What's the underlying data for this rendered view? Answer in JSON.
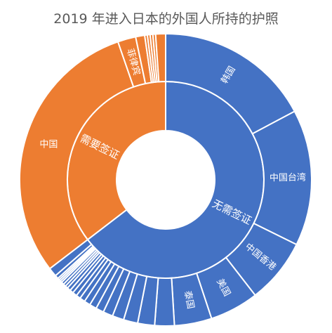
{
  "chart_data": {
    "type": "sunburst",
    "title": "2019 年进入日本的外国人所持的护照",
    "colors": {
      "visa_free": "#4472C4",
      "visa_required": "#ED7D31"
    },
    "inner": [
      {
        "name": "无需签证",
        "value": 64.6,
        "color_key": "visa_free"
      },
      {
        "name": "需要签证",
        "value": 35.4,
        "color_key": "visa_required"
      }
    ],
    "outer": [
      {
        "parent": "无需签证",
        "name": "韩国",
        "value": 17.5,
        "label": "韩国"
      },
      {
        "parent": "无需签证",
        "name": "中国台湾",
        "value": 15.3,
        "label": "中国台湾"
      },
      {
        "parent": "无需签证",
        "name": "中国香港",
        "value": 7.3,
        "label": "中国香港"
      },
      {
        "parent": "无需签证",
        "name": "美国",
        "value": 5.5,
        "label": "美国"
      },
      {
        "parent": "无需签证",
        "name": "泰国",
        "value": 4.2,
        "label": "泰国"
      },
      {
        "parent": "无需签证",
        "name": "",
        "value": 2.2,
        "label": ""
      },
      {
        "parent": "无需签证",
        "name": "",
        "value": 1.9,
        "label": ""
      },
      {
        "parent": "无需签证",
        "name": "",
        "value": 1.6,
        "label": ""
      },
      {
        "parent": "无需签证",
        "name": "",
        "value": 1.3,
        "label": ""
      },
      {
        "parent": "无需签证",
        "name": "",
        "value": 1.1,
        "label": ""
      },
      {
        "parent": "无需签证",
        "name": "",
        "value": 0.9,
        "label": ""
      },
      {
        "parent": "无需签证",
        "name": "",
        "value": 0.8,
        "label": ""
      },
      {
        "parent": "无需签证",
        "name": "",
        "value": 0.7,
        "label": ""
      },
      {
        "parent": "无需签证",
        "name": "",
        "value": 0.6,
        "label": ""
      },
      {
        "parent": "无需签证",
        "name": "",
        "value": 0.5,
        "label": ""
      },
      {
        "parent": "无需签证",
        "name": "",
        "value": 0.5,
        "label": ""
      },
      {
        "parent": "无需签证",
        "name": "",
        "value": 0.4,
        "label": ""
      },
      {
        "parent": "无需签证",
        "name": "",
        "value": 0.4,
        "label": ""
      },
      {
        "parent": "无需签证",
        "name": "",
        "value": 0.3,
        "label": ""
      },
      {
        "parent": "无需签证",
        "name": "",
        "value": 0.3,
        "label": ""
      },
      {
        "parent": "无需签证",
        "name": "",
        "value": 0.3,
        "label": ""
      },
      {
        "parent": "无需签证",
        "name": "",
        "value": 0.2,
        "label": ""
      },
      {
        "parent": "无需签证",
        "name": "",
        "value": 0.2,
        "label": ""
      },
      {
        "parent": "无需签证",
        "name": "",
        "value": 0.2,
        "label": ""
      },
      {
        "parent": "无需签证",
        "name": "",
        "value": 0.4,
        "label": ""
      },
      {
        "parent": "无需签证",
        "name": "",
        "value": 1.0,
        "label": ""
      },
      {
        "parent": "需要签证",
        "name": "中国",
        "value": 30.1,
        "label": "中国"
      },
      {
        "parent": "需要签证",
        "name": "菲律宾",
        "value": 2.0,
        "label": "菲律宾"
      },
      {
        "parent": "需要签证",
        "name": "",
        "value": 1.0,
        "label": ""
      },
      {
        "parent": "需要签证",
        "name": "",
        "value": 0.3,
        "label": ""
      },
      {
        "parent": "需要签证",
        "name": "",
        "value": 0.3,
        "label": ""
      },
      {
        "parent": "需要签证",
        "name": "",
        "value": 0.3,
        "label": ""
      },
      {
        "parent": "需要签证",
        "name": "",
        "value": 0.3,
        "label": ""
      },
      {
        "parent": "需要签证",
        "name": "",
        "value": 1.1,
        "label": ""
      }
    ]
  }
}
